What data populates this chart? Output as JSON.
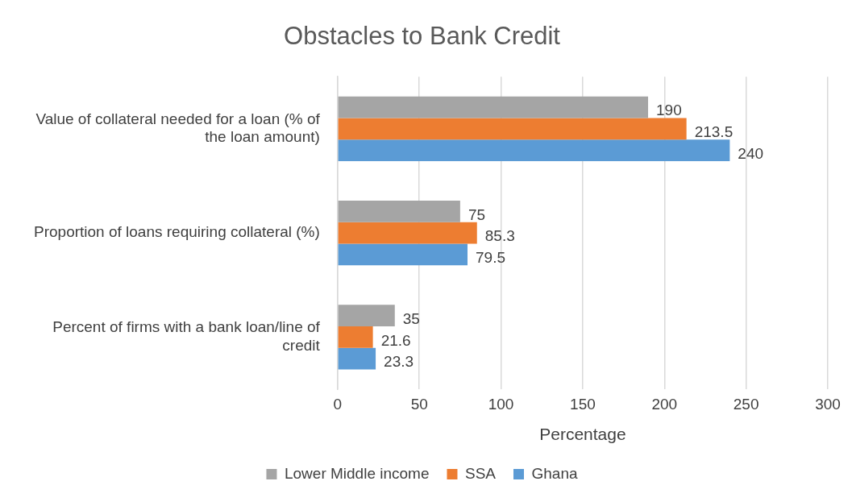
{
  "chart_data": {
    "type": "bar",
    "title": "Obstacles to Bank Credit",
    "xlabel": "Percentage",
    "orientation": "horizontal",
    "categories": [
      "Value of collateral needed for a loan (% of the loan amount)",
      "Proportion of loans requiring collateral (%)",
      "Percent of firms with a bank loan/line of credit"
    ],
    "series": [
      {
        "name": "Lower Middle income",
        "color": "#a5a5a5",
        "values": [
          190,
          75,
          35
        ]
      },
      {
        "name": "SSA",
        "color": "#ed7d31",
        "values": [
          213.5,
          85.3,
          21.6
        ]
      },
      {
        "name": "Ghana",
        "color": "#5b9bd5",
        "values": [
          240,
          79.5,
          23.3
        ]
      }
    ],
    "xlim": [
      0,
      300
    ],
    "xticks": [
      0,
      50,
      100,
      150,
      200,
      250,
      300
    ],
    "grid": "x",
    "legend": "bottom",
    "data_labels": true
  }
}
